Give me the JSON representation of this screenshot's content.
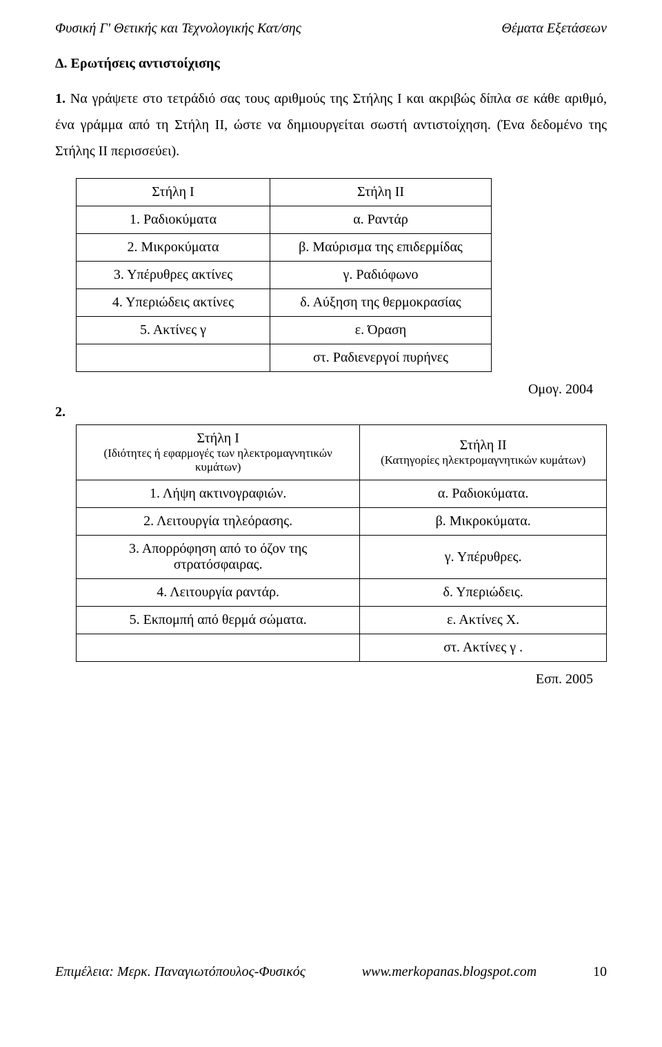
{
  "header": {
    "left": "Φυσική Γ' Θετικής  και   Τεχνολογικής Κατ/σης",
    "right": "Θέματα Εξετάσεων"
  },
  "sectionTitle": "Δ.   Ερωτήσεις αντιστοίχισης",
  "q1": {
    "lead": "1.",
    "text": "  Να γράψετε στο τετράδιό σας τους αριθμούς της Στήλης Ι  και ακριβώς δίπλα σε κάθε αριθμό, ένα γράμμα από τη Στήλη ΙΙ, ώστε να δημιουργείται σωστή αντιστοίχηση. (Ένα δεδομένο της Στήλης ΙΙ περισσεύει)."
  },
  "table1": {
    "head1": "Στήλη Ι",
    "head2": "Στήλη ΙΙ",
    "rows": [
      [
        "1. Ραδιοκύματα",
        "α. Ραντάρ"
      ],
      [
        "2. Μικροκύματα",
        "β. Μαύρισμα της επιδερμίδας"
      ],
      [
        "3. Υπέρυθρες ακτίνες",
        "γ. Ραδιόφωνο"
      ],
      [
        "4. Υπεριώδεις ακτίνες",
        "δ. Αύξηση της θερμοκρασίας"
      ],
      [
        "5. Ακτίνες γ",
        "ε. Όραση"
      ],
      [
        "",
        "στ. Ραδιενεργοί πυρήνες"
      ]
    ]
  },
  "cite1": "Ομογ. 2004",
  "q2": {
    "lead": "2."
  },
  "table2": {
    "head1": "Στήλη Ι",
    "head2": "Στήλη ΙΙ",
    "sub1": "(Ιδιότητες ή εφαρμογές των ηλεκτρομαγνητικών κυμάτων)",
    "sub2": "(Κατηγορίες ηλεκτρομαγνητικών κυμάτων)",
    "rows": [
      [
        "1. Λήψη     ακτινογραφιών.",
        "α. Ραδιοκύματα."
      ],
      [
        "2. Λειτουργία τηλεόρασης.",
        "β. Μικροκύματα."
      ],
      [
        "3. Απορρόφηση από το όζον της στρατόσφαιρας.",
        "γ. Υπέρυθρες."
      ],
      [
        "4. Λειτουργία ραντάρ.",
        "δ. Υπεριώδεις."
      ],
      [
        "5. Εκπομπή από θερμά σώματα.",
        "ε. Ακτίνες Χ."
      ],
      [
        "",
        "στ. Ακτίνες γ ."
      ]
    ]
  },
  "cite2": "Εσπ. 2005",
  "footer": {
    "left": "Επιμέλεια:   Μερκ.  Παναγιωτόπουλος-Φυσικός",
    "mid": "www.merkopanas.blogspot.com",
    "page": "10"
  }
}
